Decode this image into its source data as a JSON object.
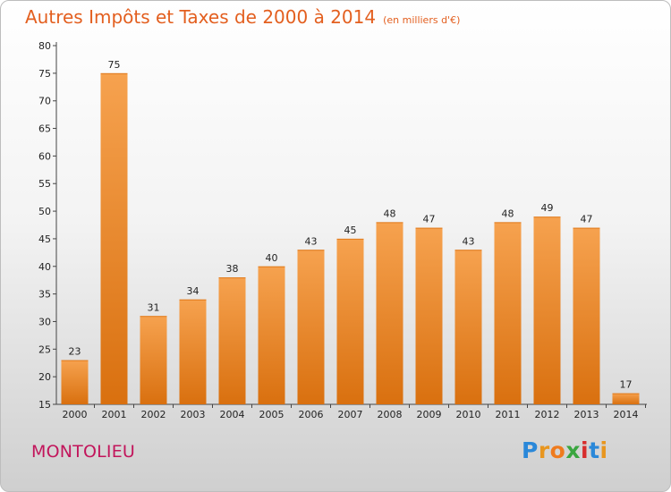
{
  "title": {
    "main": "Autres Impôts et Taxes de 2000 à 2014",
    "unit": "(en milliers d'€)"
  },
  "location": "MONTOLIEU",
  "logo": {
    "letters": [
      "P",
      "r",
      "o",
      "x",
      "i",
      "t",
      "i"
    ]
  },
  "colors": {
    "bar_top": "#f6a24f",
    "bar_bottom": "#d9700f",
    "title": "#e35f1f",
    "location": "#c2155b"
  },
  "chart_data": {
    "type": "bar",
    "categories": [
      "2000",
      "2001",
      "2002",
      "2003",
      "2004",
      "2005",
      "2006",
      "2007",
      "2008",
      "2009",
      "2010",
      "2011",
      "2012",
      "2013",
      "2014"
    ],
    "values": [
      23,
      75,
      31,
      34,
      38,
      40,
      43,
      45,
      48,
      47,
      43,
      48,
      49,
      47,
      17
    ],
    "value_labels": [
      "23",
      "75",
      "31",
      "34",
      "38",
      "40",
      "43",
      "45",
      "48",
      "47",
      "43",
      "48",
      "49",
      "47",
      "17"
    ],
    "ylim": [
      15,
      80
    ],
    "yticks": [
      "15",
      "20",
      "25",
      "30",
      "35",
      "40",
      "45",
      "50",
      "55",
      "60",
      "65",
      "70",
      "75",
      "80"
    ],
    "grid": false,
    "legend": "none"
  }
}
